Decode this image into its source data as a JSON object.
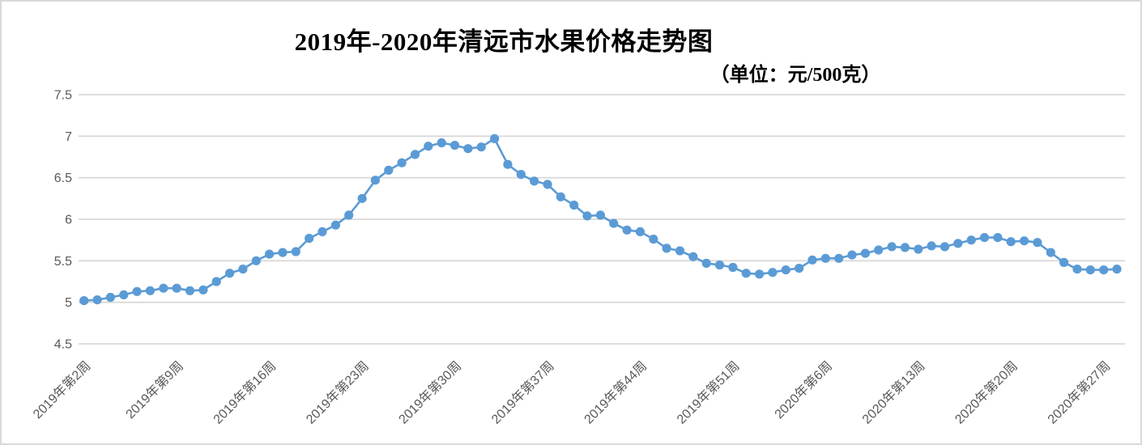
{
  "chart": {
    "title": "2019年-2020年清远市水果价格走势图",
    "subtitle": "（单位：元/500克）"
  },
  "colors": {
    "series_line": "#5b9bd5",
    "marker": "#5b9bd5",
    "gridline": "#d9d9d9",
    "axis_text": "#595959",
    "title_text": "#000000",
    "frame_border": "#d9d9d9",
    "background": "#ffffff"
  },
  "chart_data": {
    "type": "line",
    "title": "2019年-2020年清远市水果价格走势图",
    "unit_annotation": "（单位：元/500克）",
    "legend": "none",
    "grid": true,
    "ylim": [
      4.5,
      7.5
    ],
    "y_ticks": [
      4.5,
      5,
      5.5,
      6,
      6.5,
      7,
      7.5
    ],
    "y_tick_labels": [
      "4.5",
      "5",
      "5.5",
      "6",
      "6.5",
      "7",
      "7.5"
    ],
    "x_tick_interval": 7,
    "x_tick_labels": [
      "2019年第2周",
      "2019年第9周",
      "2019年第16周",
      "2019年第23周",
      "2019年第30周",
      "2019年第37周",
      "2019年第44周",
      "2019年第51周",
      "2020年第6周",
      "2020年第13周",
      "2020年第20周",
      "2020年第27周"
    ],
    "values": [
      5.02,
      5.03,
      5.06,
      5.09,
      5.13,
      5.14,
      5.17,
      5.17,
      5.14,
      5.15,
      5.25,
      5.35,
      5.4,
      5.5,
      5.58,
      5.6,
      5.61,
      5.77,
      5.85,
      5.93,
      6.05,
      6.25,
      6.47,
      6.59,
      6.68,
      6.78,
      6.88,
      6.92,
      6.89,
      6.85,
      6.87,
      6.97,
      6.66,
      6.54,
      6.46,
      6.42,
      6.27,
      6.17,
      6.04,
      6.05,
      5.95,
      5.87,
      5.85,
      5.76,
      5.65,
      5.62,
      5.55,
      5.47,
      5.45,
      5.42,
      5.35,
      5.34,
      5.36,
      5.39,
      5.41,
      5.51,
      5.53,
      5.53,
      5.57,
      5.59,
      5.63,
      5.67,
      5.66,
      5.64,
      5.68,
      5.67,
      5.71,
      5.75,
      5.78,
      5.78,
      5.73,
      5.74,
      5.72,
      5.6,
      5.48,
      5.4,
      5.39,
      5.39,
      5.4
    ]
  }
}
